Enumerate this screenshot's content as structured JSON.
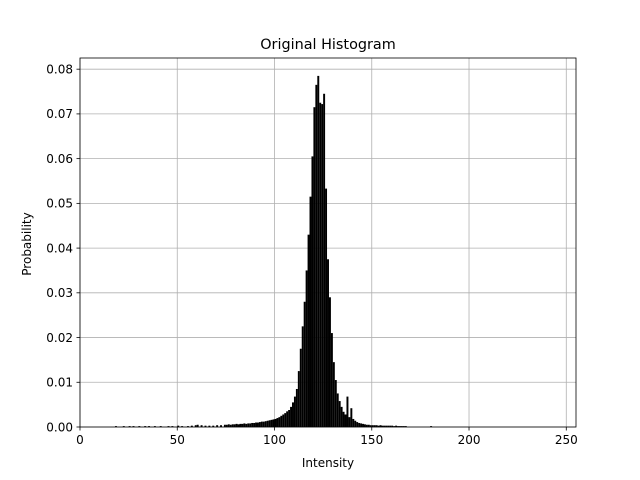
{
  "chart_data": {
    "type": "bar",
    "title": "Original Histogram",
    "xlabel": "Intensity",
    "ylabel": "Probability",
    "xlim": [
      0,
      255
    ],
    "ylim": [
      0,
      0.0825
    ],
    "grid": true,
    "bar_color": "#000000",
    "x_ticks": [
      0,
      50,
      100,
      150,
      200,
      250
    ],
    "x_tick_labels": [
      "0",
      "50",
      "100",
      "150",
      "200",
      "250"
    ],
    "y_ticks": [
      0.0,
      0.01,
      0.02,
      0.03,
      0.04,
      0.05,
      0.06,
      0.07,
      0.08
    ],
    "y_tick_labels": [
      "0.00",
      "0.01",
      "0.02",
      "0.03",
      "0.04",
      "0.05",
      "0.06",
      "0.07",
      "0.08"
    ],
    "bins": [
      {
        "x": 18,
        "y": 0.0002
      },
      {
        "x": 22,
        "y": 0.0002
      },
      {
        "x": 25,
        "y": 0.0002
      },
      {
        "x": 27,
        "y": 0.0002
      },
      {
        "x": 30,
        "y": 0.0002
      },
      {
        "x": 33,
        "y": 0.0002
      },
      {
        "x": 35,
        "y": 0.0002
      },
      {
        "x": 38,
        "y": 0.0002
      },
      {
        "x": 41,
        "y": 0.0002
      },
      {
        "x": 45,
        "y": 0.0002
      },
      {
        "x": 47,
        "y": 0.0002
      },
      {
        "x": 50,
        "y": 0.0003
      },
      {
        "x": 52,
        "y": 0.0002
      },
      {
        "x": 55,
        "y": 0.0002
      },
      {
        "x": 57,
        "y": 0.0003
      },
      {
        "x": 59,
        "y": 0.0004
      },
      {
        "x": 60,
        "y": 0.0005
      },
      {
        "x": 62,
        "y": 0.0004
      },
      {
        "x": 64,
        "y": 0.0003
      },
      {
        "x": 66,
        "y": 0.0003
      },
      {
        "x": 68,
        "y": 0.0003
      },
      {
        "x": 70,
        "y": 0.0004
      },
      {
        "x": 72,
        "y": 0.0004
      },
      {
        "x": 74,
        "y": 0.0005
      },
      {
        "x": 75,
        "y": 0.0005
      },
      {
        "x": 76,
        "y": 0.0006
      },
      {
        "x": 77,
        "y": 0.0005
      },
      {
        "x": 78,
        "y": 0.0006
      },
      {
        "x": 79,
        "y": 0.0006
      },
      {
        "x": 80,
        "y": 0.0007
      },
      {
        "x": 81,
        "y": 0.0006
      },
      {
        "x": 82,
        "y": 0.0007
      },
      {
        "x": 83,
        "y": 0.0007
      },
      {
        "x": 84,
        "y": 0.0008
      },
      {
        "x": 85,
        "y": 0.0007
      },
      {
        "x": 86,
        "y": 0.0008
      },
      {
        "x": 87,
        "y": 0.0008
      },
      {
        "x": 88,
        "y": 0.0009
      },
      {
        "x": 89,
        "y": 0.0009
      },
      {
        "x": 90,
        "y": 0.001
      },
      {
        "x": 91,
        "y": 0.001
      },
      {
        "x": 92,
        "y": 0.0011
      },
      {
        "x": 93,
        "y": 0.0012
      },
      {
        "x": 94,
        "y": 0.0012
      },
      {
        "x": 95,
        "y": 0.0013
      },
      {
        "x": 96,
        "y": 0.0014
      },
      {
        "x": 97,
        "y": 0.0015
      },
      {
        "x": 98,
        "y": 0.0016
      },
      {
        "x": 99,
        "y": 0.0017
      },
      {
        "x": 100,
        "y": 0.0018
      },
      {
        "x": 101,
        "y": 0.002
      },
      {
        "x": 102,
        "y": 0.0022
      },
      {
        "x": 103,
        "y": 0.0025
      },
      {
        "x": 104,
        "y": 0.0028
      },
      {
        "x": 105,
        "y": 0.0031
      },
      {
        "x": 106,
        "y": 0.0035
      },
      {
        "x": 107,
        "y": 0.0038
      },
      {
        "x": 108,
        "y": 0.0045
      },
      {
        "x": 109,
        "y": 0.0055
      },
      {
        "x": 110,
        "y": 0.0068
      },
      {
        "x": 111,
        "y": 0.0085
      },
      {
        "x": 112,
        "y": 0.0125
      },
      {
        "x": 113,
        "y": 0.0175
      },
      {
        "x": 114,
        "y": 0.0225
      },
      {
        "x": 115,
        "y": 0.028
      },
      {
        "x": 116,
        "y": 0.035
      },
      {
        "x": 117,
        "y": 0.043
      },
      {
        "x": 118,
        "y": 0.0515
      },
      {
        "x": 119,
        "y": 0.0605
      },
      {
        "x": 120,
        "y": 0.0715
      },
      {
        "x": 121,
        "y": 0.0765
      },
      {
        "x": 122,
        "y": 0.0785
      },
      {
        "x": 123,
        "y": 0.0725
      },
      {
        "x": 124,
        "y": 0.0722
      },
      {
        "x": 125,
        "y": 0.0745
      },
      {
        "x": 126,
        "y": 0.0533
      },
      {
        "x": 127,
        "y": 0.0375
      },
      {
        "x": 128,
        "y": 0.029
      },
      {
        "x": 129,
        "y": 0.021
      },
      {
        "x": 130,
        "y": 0.0145
      },
      {
        "x": 131,
        "y": 0.0105
      },
      {
        "x": 132,
        "y": 0.0075
      },
      {
        "x": 133,
        "y": 0.0058
      },
      {
        "x": 134,
        "y": 0.0045
      },
      {
        "x": 135,
        "y": 0.0034
      },
      {
        "x": 136,
        "y": 0.0028
      },
      {
        "x": 137,
        "y": 0.0068
      },
      {
        "x": 138,
        "y": 0.0022
      },
      {
        "x": 139,
        "y": 0.0042
      },
      {
        "x": 140,
        "y": 0.0018
      },
      {
        "x": 141,
        "y": 0.0014
      },
      {
        "x": 142,
        "y": 0.0011
      },
      {
        "x": 143,
        "y": 0.0009
      },
      {
        "x": 144,
        "y": 0.0008
      },
      {
        "x": 145,
        "y": 0.0007
      },
      {
        "x": 146,
        "y": 0.0006
      },
      {
        "x": 147,
        "y": 0.0005
      },
      {
        "x": 148,
        "y": 0.0005
      },
      {
        "x": 149,
        "y": 0.0004
      },
      {
        "x": 150,
        "y": 0.0004
      },
      {
        "x": 151,
        "y": 0.0004
      },
      {
        "x": 152,
        "y": 0.0004
      },
      {
        "x": 153,
        "y": 0.0003
      },
      {
        "x": 154,
        "y": 0.0004
      },
      {
        "x": 155,
        "y": 0.0003
      },
      {
        "x": 156,
        "y": 0.0003
      },
      {
        "x": 157,
        "y": 0.0003
      },
      {
        "x": 158,
        "y": 0.0003
      },
      {
        "x": 159,
        "y": 0.0003
      },
      {
        "x": 160,
        "y": 0.0003
      },
      {
        "x": 161,
        "y": 0.0002
      },
      {
        "x": 162,
        "y": 0.0003
      },
      {
        "x": 163,
        "y": 0.0002
      },
      {
        "x": 164,
        "y": 0.0002
      },
      {
        "x": 165,
        "y": 0.0002
      },
      {
        "x": 166,
        "y": 0.0002
      },
      {
        "x": 167,
        "y": 0.0002
      },
      {
        "x": 180,
        "y": 0.0002
      }
    ]
  }
}
